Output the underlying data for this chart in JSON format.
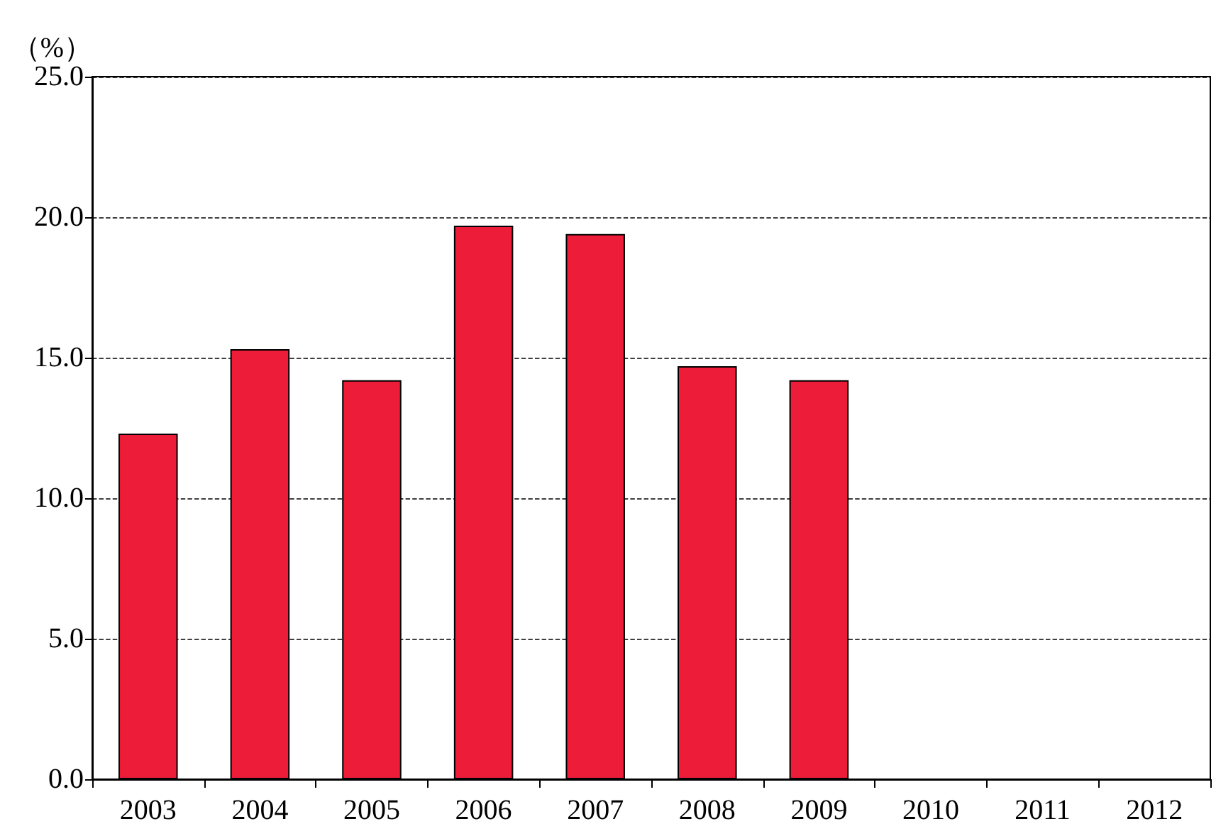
{
  "chart_data": {
    "type": "bar",
    "ylabel": "（%）",
    "categories": [
      "2003",
      "2004",
      "2005",
      "2006",
      "2007",
      "2008",
      "2009",
      "2010",
      "2011",
      "2012"
    ],
    "values": [
      12.3,
      15.3,
      14.2,
      19.7,
      19.4,
      14.7,
      14.2,
      null,
      null,
      null
    ],
    "color": "#ed1c39",
    "ylim": [
      0,
      25
    ],
    "yticks": [
      {
        "value": 0,
        "label": "0.0"
      },
      {
        "value": 5,
        "label": "5.0"
      },
      {
        "value": 10,
        "label": "10.0"
      },
      {
        "value": 15,
        "label": "15.0"
      },
      {
        "value": 20,
        "label": "20.0"
      },
      {
        "value": 25,
        "label": "25.0"
      }
    ],
    "grid": "y"
  }
}
